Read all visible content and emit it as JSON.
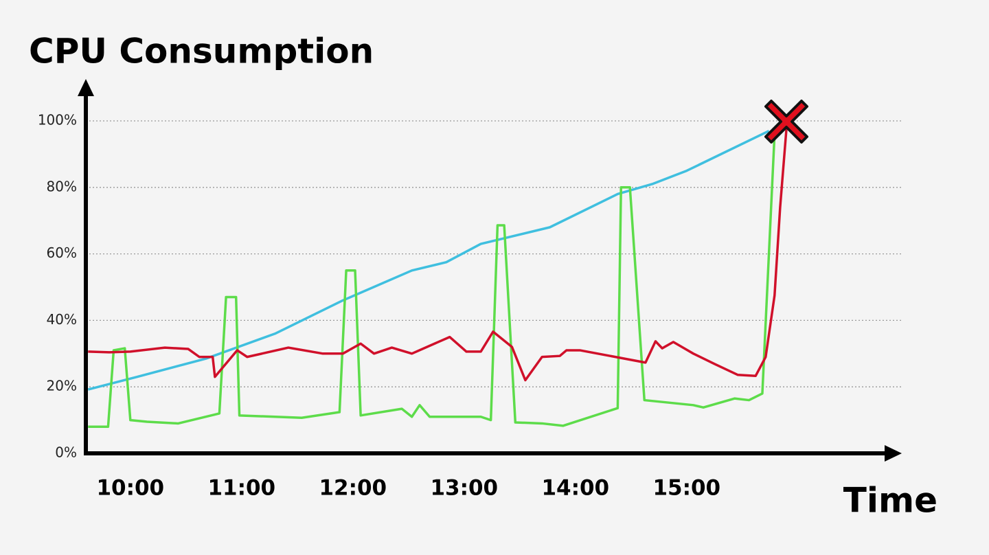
{
  "chart_data": {
    "type": "line",
    "title": "CPU Consumption",
    "x_label": "Time",
    "xlim": [
      9.6,
      16.9
    ],
    "xticks": [
      {
        "value": 10,
        "label": "10:00"
      },
      {
        "value": 11,
        "label": "11:00"
      },
      {
        "value": 12,
        "label": "12:00"
      },
      {
        "value": 13,
        "label": "13:00"
      },
      {
        "value": 14,
        "label": "14:00"
      },
      {
        "value": 15,
        "label": "15:00"
      }
    ],
    "ylim": [
      0,
      111
    ],
    "yticks": [
      {
        "value": 0,
        "label": "0%"
      },
      {
        "value": 20,
        "label": "20%"
      },
      {
        "value": 40,
        "label": "40%"
      },
      {
        "value": 60,
        "label": "60%"
      },
      {
        "value": 80,
        "label": "80%"
      },
      {
        "value": 100,
        "label": "100%"
      }
    ],
    "grid": true,
    "series": [
      {
        "color": "#3fbfdf",
        "x": [
          9.62,
          10.06,
          10.68,
          11.3,
          11.91,
          12.53,
          12.84,
          13.15,
          13.77,
          14.38,
          14.69,
          15.0,
          15.74
        ],
        "values": [
          19.2,
          23,
          28.5,
          36,
          46,
          55,
          57.5,
          63,
          68,
          78,
          81,
          85,
          97
        ]
      },
      {
        "color": "#5ddc4a",
        "x": [
          9.62,
          9.8,
          9.85,
          9.95,
          10.0,
          10.15,
          10.43,
          10.8,
          10.86,
          10.95,
          10.98,
          11.54,
          11.88,
          11.94,
          12.02,
          12.07,
          12.44,
          12.53,
          12.6,
          12.69,
          13.15,
          13.24,
          13.3,
          13.36,
          13.46,
          13.7,
          13.89,
          14.38,
          14.41,
          14.49,
          14.62,
          15.06,
          15.15,
          15.43,
          15.56,
          15.68,
          15.79
        ],
        "values": [
          8,
          8,
          31,
          31.6,
          10,
          9.5,
          9,
          12,
          47,
          47,
          11.4,
          10.7,
          12.4,
          55,
          55,
          11.4,
          13.4,
          11,
          14.5,
          11,
          11,
          10,
          68.6,
          68.6,
          9.3,
          9,
          8.3,
          13.6,
          80,
          80,
          16,
          14.5,
          13.8,
          16.5,
          16,
          18,
          96
        ]
      },
      {
        "color": "#d0102a",
        "x": [
          9.62,
          9.81,
          10.0,
          10.31,
          10.52,
          10.62,
          10.74,
          10.76,
          10.96,
          11.05,
          11.42,
          11.73,
          11.91,
          12.07,
          12.19,
          12.35,
          12.53,
          12.87,
          13.02,
          13.15,
          13.26,
          13.43,
          13.55,
          13.7,
          13.86,
          13.92,
          14.04,
          14.63,
          14.72,
          14.78,
          14.88,
          15.06,
          15.25,
          15.46,
          15.62,
          15.71,
          15.79,
          15.84,
          15.9
        ],
        "values": [
          30.6,
          30.4,
          30.6,
          31.8,
          31.4,
          29,
          29,
          23,
          31,
          29,
          31.8,
          30,
          30,
          33,
          30,
          31.8,
          30,
          35,
          30.6,
          30.6,
          36.6,
          32,
          22,
          29,
          29.3,
          31,
          31,
          27.3,
          33.7,
          31.6,
          33.5,
          30,
          26.9,
          23.6,
          23.3,
          29,
          47.5,
          74,
          99
        ]
      }
    ]
  }
}
